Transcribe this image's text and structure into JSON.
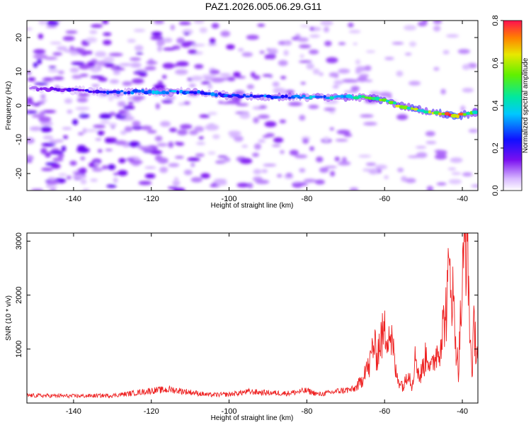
{
  "title": "PAZ1.2026.005.06.29.G11",
  "chart_data": [
    {
      "type": "heatmap",
      "title": "PAZ1.2026.005.06.29.G11",
      "xlabel": "Height of straight line (km)",
      "ylabel": "Frequency (Hz)",
      "xlim": [
        -152,
        -36
      ],
      "ylim": [
        -25,
        25
      ],
      "xticks": [
        -140,
        -120,
        -100,
        -80,
        -60,
        -40
      ],
      "yticks": [
        20,
        10,
        0,
        -10,
        -20
      ],
      "colorbar": {
        "label": "Normalized spectral amplitude",
        "range": [
          0,
          0.8
        ],
        "ticks": [
          "0.0",
          "0.2",
          "0.4",
          "0.6",
          "0.8"
        ]
      },
      "ridge": {
        "description": "dominant frequency track",
        "x": [
          -150,
          -140,
          -130,
          -120,
          -110,
          -100,
          -90,
          -80,
          -70,
          -65,
          -60,
          -55,
          -50,
          -45,
          -42,
          -38,
          -36
        ],
        "freq": [
          5,
          4.5,
          4,
          4,
          4,
          3,
          2.5,
          2.5,
          2.5,
          2.5,
          1.5,
          -0.5,
          -1.5,
          -2.5,
          -3,
          -2.5,
          -2
        ],
        "amplitude": [
          0.12,
          0.18,
          0.25,
          0.35,
          0.3,
          0.28,
          0.3,
          0.35,
          0.4,
          0.45,
          0.55,
          0.6,
          0.55,
          0.65,
          0.8,
          0.5,
          0.45
        ]
      }
    },
    {
      "type": "line",
      "xlabel": "Height of straight line (km)",
      "ylabel": "SNR (10 * v/v)",
      "xlim": [
        -152,
        -36
      ],
      "ylim": [
        0,
        3150
      ],
      "xticks": [
        -140,
        -120,
        -100,
        -80,
        -60,
        -40
      ],
      "yticks": [
        1000,
        2000,
        3000
      ],
      "series": [
        {
          "name": "SNR",
          "color": "#ee2222",
          "x": [
            -152,
            -140,
            -130,
            -125,
            -120,
            -115,
            -110,
            -105,
            -100,
            -95,
            -90,
            -85,
            -80,
            -77,
            -75,
            -72,
            -70,
            -68,
            -66,
            -65,
            -64,
            -63,
            -62,
            -61,
            -60,
            -59,
            -58,
            -57,
            -56,
            -55,
            -54,
            -53,
            -52,
            -51,
            -50,
            -49,
            -48,
            -47,
            -46,
            -45,
            -44,
            -43.5,
            -43,
            -42.5,
            -42,
            -41.5,
            -41,
            -40.5,
            -40,
            -39.5,
            -39,
            -38.5,
            -38,
            -37.5,
            -37,
            -36.5,
            -36
          ],
          "y": [
            140,
            130,
            140,
            180,
            230,
            250,
            200,
            150,
            160,
            210,
            190,
            180,
            230,
            160,
            180,
            220,
            240,
            250,
            380,
            680,
            620,
            1100,
            900,
            1180,
            1300,
            1400,
            1100,
            500,
            400,
            300,
            650,
            320,
            900,
            450,
            700,
            950,
            600,
            900,
            1000,
            1400,
            1800,
            2300,
            2600,
            2000,
            1500,
            1000,
            600,
            1500,
            2100,
            2800,
            3150,
            2500,
            1200,
            600,
            1400,
            1100,
            900
          ]
        }
      ]
    }
  ]
}
